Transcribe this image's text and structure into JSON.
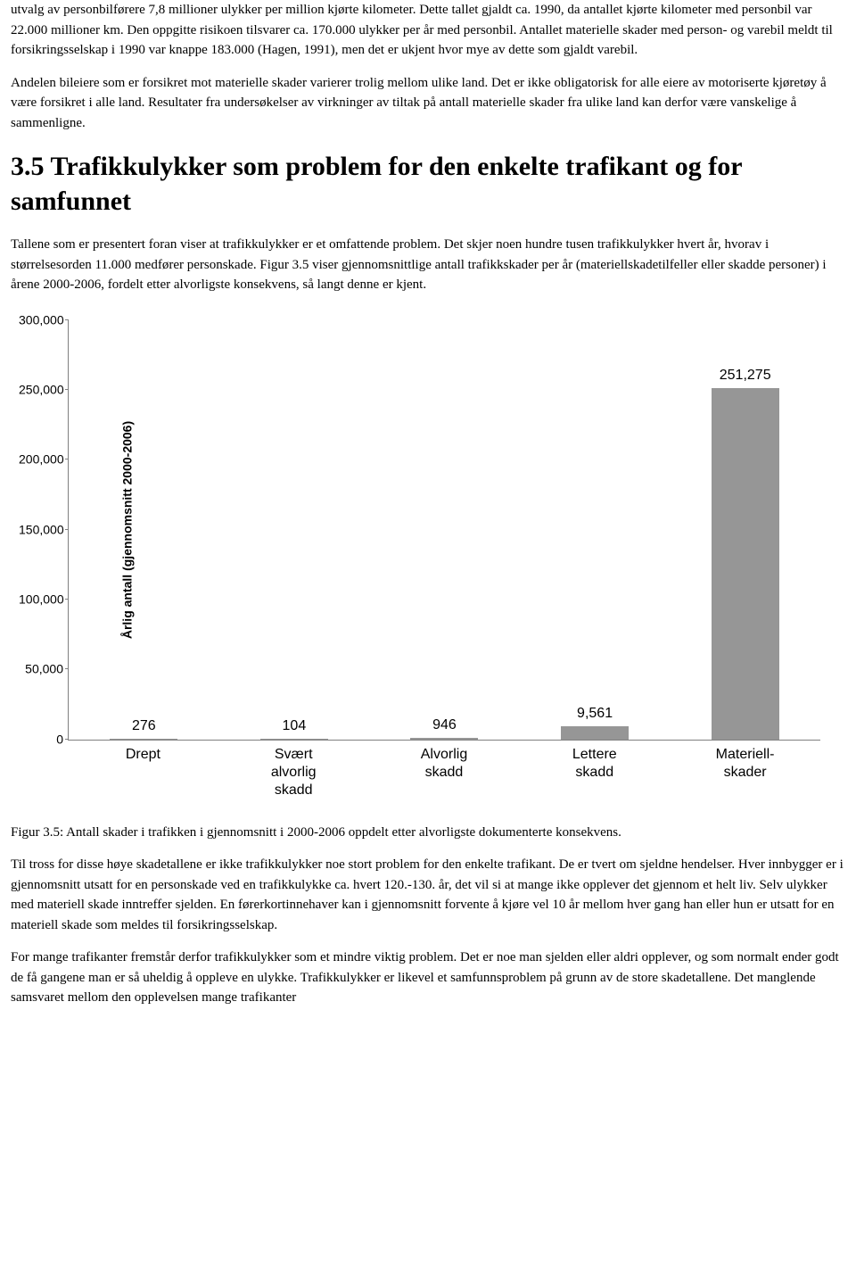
{
  "para1": "utvalg av personbilførere 7,8 millioner ulykker per million kjørte kilometer. Dette tallet gjaldt ca. 1990, da antallet kjørte kilometer med personbil var 22.000 millioner km. Den oppgitte risikoen tilsvarer ca. 170.000 ulykker per år med personbil. Antallet materielle skader med person- og varebil meldt til forsikringsselskap i 1990 var knappe 183.000 (Hagen, 1991), men det er ukjent hvor mye av dette som gjaldt varebil.",
  "para2": "Andelen bileiere som er forsikret mot materielle skader varierer trolig mellom ulike land. Det er ikke obligatorisk for alle eiere av motoriserte kjøretøy å være forsikret i alle land. Resultater fra undersøkelser av virkninger av tiltak på antall materielle skader fra ulike land kan derfor være vanskelige å sammenligne.",
  "heading": "3.5 Trafikkulykker som problem for den enkelte trafikant og for samfunnet",
  "para3": "Tallene som er presentert foran viser at trafikkulykker er et omfattende problem. Det skjer noen hundre tusen trafikkulykker hvert år, hvorav i størrelsesorden 11.000 medfører personskade. Figur 3.5 viser gjennomsnittlige antall trafikkskader per år (materiellskadetilfeller eller skadde personer) i årene 2000-2006, fordelt etter alvorligste konsekvens, så langt denne er kjent.",
  "chart": {
    "type": "bar",
    "ylabel": "Årlig antall (gjennomsnitt 2000-2006)",
    "ymax": 300000,
    "ytick_step": 50000,
    "yticks": [
      {
        "v": 0,
        "label": "0"
      },
      {
        "v": 50000,
        "label": "50,000"
      },
      {
        "v": 100000,
        "label": "100,000"
      },
      {
        "v": 150000,
        "label": "150,000"
      },
      {
        "v": 200000,
        "label": "200,000"
      },
      {
        "v": 250000,
        "label": "250,000"
      },
      {
        "v": 300000,
        "label": "300,000"
      }
    ],
    "bar_color": "#969696",
    "categories": [
      {
        "label": "Drept",
        "value": 276,
        "value_label": "276"
      },
      {
        "label": "Svært alvorlig skadd",
        "value": 104,
        "value_label": "104"
      },
      {
        "label": "Alvorlig skadd",
        "value": 946,
        "value_label": "946"
      },
      {
        "label": "Lettere skadd",
        "value": 9561,
        "value_label": "9,561"
      },
      {
        "label": "Materiell-skader",
        "value": 251275,
        "value_label": "251,275"
      }
    ],
    "background_color": "#ffffff"
  },
  "caption": "Figur 3.5: Antall skader i trafikken i gjennomsnitt i 2000-2006 oppdelt etter alvorligste dokumenterte konsekvens.",
  "para4": "Til tross for disse høye skadetallene er ikke trafikkulykker noe stort problem for den enkelte trafikant. De er tvert om sjeldne hendelser. Hver innbygger er i gjennomsnitt utsatt for en personskade ved en trafikkulykke ca. hvert 120.-130. år, det vil si at mange ikke opplever det gjennom et helt liv. Selv ulykker med materiell skade inntreffer sjelden. En førerkortinnehaver kan i gjennomsnitt forvente å kjøre vel 10 år mellom hver gang han eller hun er utsatt for en materiell skade som meldes til forsikringsselskap.",
  "para5": "For mange trafikanter fremstår derfor trafikkulykker som et mindre viktig problem. Det er noe man sjelden eller aldri opplever, og som normalt ender godt de få gangene man er så uheldig å oppleve en ulykke. Trafikkulykker er likevel et samfunnsproblem på grunn av de store skadetallene. Det manglende samsvaret mellom den opplevelsen mange trafikanter"
}
